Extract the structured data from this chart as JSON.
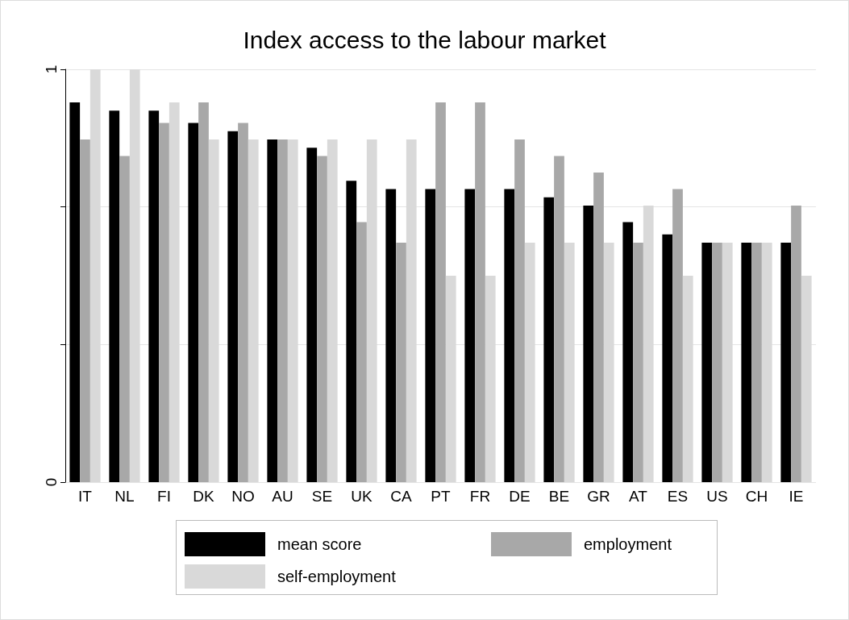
{
  "chart_data": {
    "type": "bar",
    "title": "Index access to the labour market",
    "categories": [
      "IT",
      "NL",
      "FI",
      "DK",
      "NO",
      "AU",
      "SE",
      "UK",
      "CA",
      "PT",
      "FR",
      "DE",
      "BE",
      "GR",
      "AT",
      "ES",
      "US",
      "CH",
      "IE"
    ],
    "series": [
      {
        "name": "mean score",
        "color": "#000000",
        "values": [
          0.92,
          0.9,
          0.9,
          0.87,
          0.85,
          0.83,
          0.81,
          0.73,
          0.71,
          0.71,
          0.71,
          0.71,
          0.69,
          0.67,
          0.63,
          0.6,
          0.58,
          0.58,
          0.58
        ]
      },
      {
        "name": "employment",
        "color": "#a8a8a8",
        "values": [
          0.83,
          0.79,
          0.87,
          0.92,
          0.87,
          0.83,
          0.79,
          0.63,
          0.58,
          0.92,
          0.92,
          0.83,
          0.79,
          0.75,
          0.58,
          0.71,
          0.58,
          0.58,
          0.67
        ]
      },
      {
        "name": "self-employment",
        "color": "#d9d9d9",
        "values": [
          1,
          1,
          0.92,
          0.83,
          0.83,
          0.83,
          0.83,
          0.83,
          0.83,
          0.5,
          0.5,
          0.58,
          0.58,
          0.58,
          0.67,
          0.5,
          0.58,
          0.58,
          0.5
        ]
      }
    ],
    "ylim": [
      0,
      1
    ],
    "yticks": [
      0,
      {
        "value": 0.3333,
        "label": null
      },
      {
        "value": 0.6667,
        "label": null
      },
      1
    ],
    "grid": "y",
    "legend": "bottom"
  }
}
